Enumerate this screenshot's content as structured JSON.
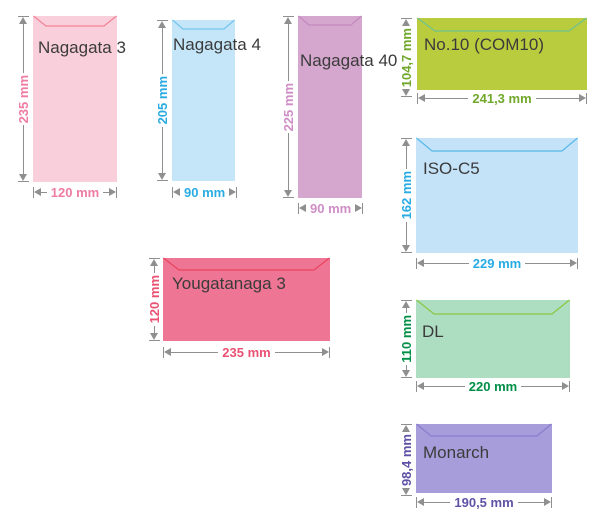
{
  "canvas": {
    "background": "#ffffff",
    "arrow_color": "#8f8f8f",
    "name_color": "#3b3b3b"
  },
  "envelopes": [
    {
      "id": "nagagata-3",
      "name": "Nagagata 3",
      "height_label": "235 mm",
      "width_label": "120 mm",
      "fill": "#f9cfdc",
      "flap_line": "#f28393",
      "dim_color": "#ef7ca2"
    },
    {
      "id": "nagagata-4",
      "name": "Nagagata 4",
      "height_label": "205 mm",
      "width_label": "90 mm",
      "fill": "#c4e6f8",
      "flap_line": "#74c6ee",
      "dim_color": "#2aabe2"
    },
    {
      "id": "nagagata-40",
      "name": "Nagagata 40",
      "height_label": "225 mm",
      "width_label": "90 mm",
      "fill": "#d5a6ce",
      "flap_line": "#c489be",
      "dim_color": "#cf8ec6"
    },
    {
      "id": "no10-com10",
      "name": "No.10 (COM10)",
      "height_label": "104,7 mm",
      "width_label": "241,3 mm",
      "fill": "#b9cc3d",
      "flap_line": "#6fc193",
      "dim_color": "#71a82b"
    },
    {
      "id": "iso-c5",
      "name": "ISO-C5",
      "height_label": "162 mm",
      "width_label": "229 mm",
      "fill": "#c4e3f9",
      "flap_line": "#59b8e9",
      "dim_color": "#29abe3"
    },
    {
      "id": "yougatanaga-3",
      "name": "Yougatanaga 3",
      "height_label": "120 mm",
      "width_label": "235 mm",
      "fill": "#ee7593",
      "flap_line": "#eb4560",
      "dim_color": "#ea5173"
    },
    {
      "id": "dl",
      "name": "DL",
      "height_label": "110 mm",
      "width_label": "220 mm",
      "fill": "#aedec2",
      "flap_line": "#8cc63f",
      "dim_color": "#008f47"
    },
    {
      "id": "monarch",
      "name": "Monarch",
      "height_label": "98,4 mm",
      "width_label": "190,5 mm",
      "fill": "#a89ddb",
      "flap_line": "#887dce",
      "dim_color": "#5f52a6"
    }
  ]
}
